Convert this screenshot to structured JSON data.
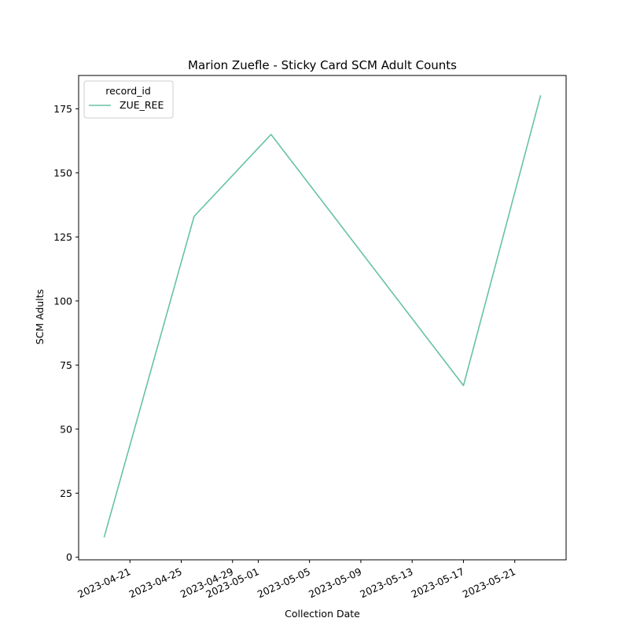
{
  "chart_data": {
    "type": "line",
    "title": "Marion Zuefle - Sticky Card SCM Adult Counts",
    "xlabel": "Collection Date",
    "ylabel": "SCM Adults",
    "x_ticks": [
      "2023-04-21",
      "2023-04-25",
      "2023-04-29",
      "2023-05-01",
      "2023-05-05",
      "2023-05-09",
      "2023-05-13",
      "2023-05-17",
      "2023-05-21"
    ],
    "y_ticks": [
      "0",
      "25",
      "50",
      "75",
      "100",
      "125",
      "150",
      "175"
    ],
    "xlim": [
      "2023-04-17",
      "2023-05-25"
    ],
    "ylim": [
      -1,
      188
    ],
    "legend": {
      "title": "record_id",
      "position": "top-left"
    },
    "grid": false,
    "series": [
      {
        "name": "ZUE_REE",
        "color": "#66c2a5",
        "x": [
          "2023-04-19",
          "2023-04-26",
          "2023-05-02",
          "2023-05-17",
          "2023-05-23"
        ],
        "y": [
          8,
          133,
          165,
          67,
          180
        ]
      }
    ]
  }
}
